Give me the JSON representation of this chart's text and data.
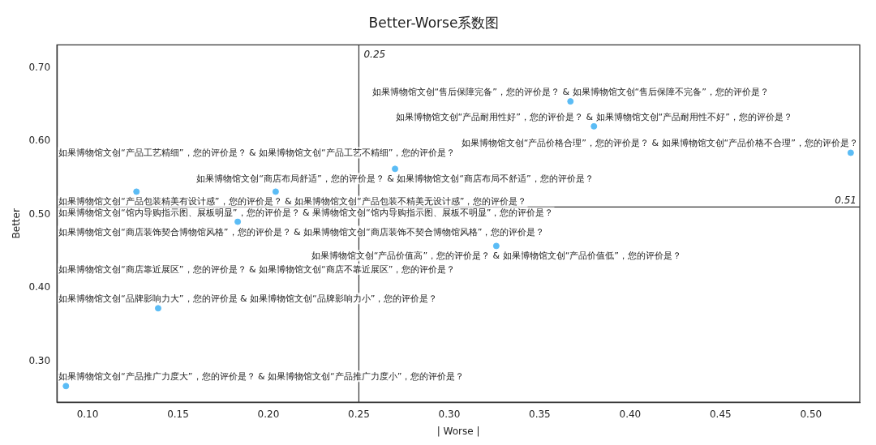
{
  "chart_data": {
    "type": "scatter",
    "title": "Better-Worse系数图",
    "xlabel": "| Worse |",
    "ylabel": "Better",
    "x": [
      0.367,
      0.38,
      0.522,
      0.27,
      0.204,
      0.127,
      0.183,
      0.326,
      0.139,
      0.088
    ],
    "series": [
      {
        "color": "#5bbcf5",
        "values": [
          0.654,
          0.62,
          0.584,
          0.562,
          0.531,
          0.531,
          0.49,
          0.457,
          0.372,
          0.266
        ]
      }
    ],
    "marker": "circle",
    "grid": false,
    "legend": false,
    "xlim": [
      0.083,
      0.527
    ],
    "ylim": [
      0.244,
      0.731
    ],
    "xticks": [
      {
        "value": 0.1,
        "label": "0.10"
      },
      {
        "value": 0.15,
        "label": "0.15"
      },
      {
        "value": 0.2,
        "label": "0.20"
      },
      {
        "value": 0.25,
        "label": "0.25"
      },
      {
        "value": 0.3,
        "label": "0.30"
      },
      {
        "value": 0.35,
        "label": "0.35"
      },
      {
        "value": 0.4,
        "label": "0.40"
      },
      {
        "value": 0.45,
        "label": "0.45"
      },
      {
        "value": 0.5,
        "label": "0.50"
      }
    ],
    "yticks": [
      {
        "value": 0.3,
        "label": "0.30"
      },
      {
        "value": 0.4,
        "label": "0.40"
      },
      {
        "value": 0.5,
        "label": "0.50"
      },
      {
        "value": 0.6,
        "label": "0.60"
      },
      {
        "value": 0.7,
        "label": "0.70"
      }
    ],
    "ref_lines": [
      {
        "axis": "x",
        "value": 0.25,
        "label": "0.25",
        "color": "#333333"
      },
      {
        "axis": "y",
        "value": 0.51,
        "label": "0.51",
        "color": "#333333"
      }
    ],
    "annotations": [
      {
        "text": "如果博物馆文创“售后保障完备”，您的评价是？ & 如果博物馆文创“售后保障不完备”，您的评价是？",
        "x": 0.367,
        "y": 0.654
      },
      {
        "text": "如果博物馆文创“产品耐用性好”，您的评价是？ & 如果博物馆文创“产品耐用性不好”，您的评价是？",
        "x": 0.38,
        "y": 0.62
      },
      {
        "text": "如果博物馆文创“产品价格合理”，您的评价是？ & 如果博物馆文创“产品价格不合理”，您的评价是？",
        "x": 0.522,
        "y": 0.584
      },
      "如果博物馆文创“产品工艺精细”，您的评价是？ & 如果博物馆文创“产品工艺不精细”，您的评价是？",
      {
        "text": "如果博物馆文创“商店布局舒适”，您的评价是？ & 如果博物馆文创“商店布局不舒适”，您的评价是？",
        "x": 0.27,
        "y": 0.562
      },
      {
        "text": "如果博物馆文创“产品包装精美有设计感”，您的评价是？ & 如果博物馆文创“产品包装不精美无设计感”，您的评价是？",
        "x": 0.204,
        "y": 0.531
      },
      {
        "text": "如果博物馆文创“馆内导购指示图、展板明显”，您的评价是？ & 果博物馆文创“馆内导购指示图、展板不明显”，您的评价是？",
        "x": 0.127,
        "y": 0.531
      },
      {
        "text": "如果博物馆文创“商店装饰契合博物馆风格”，您的评价是？ & 如果博物馆文创“商店装饰不契合博物馆风格”，您的评价是？",
        "x": 0.183,
        "y": 0.49
      },
      {
        "text": "如果博物馆文创“产品价值高”，您的评价是？ & 如果博物馆文创“产品价值低”，您的评价是？",
        "x": 0.326,
        "y": 0.457
      },
      "如果博物馆文创“商店靠近展区”，您的评价是？ & 如果博物馆文创“商店不靠近展区”，您的评价是？",
      {
        "text": "如果博物馆文创“品牌影响力大”，您的评价是 & 如果博物馆文创“品牌影响力小”，您的评价是？",
        "x": 0.139,
        "y": 0.372
      },
      {
        "text": "如果博物馆文创“产品推广力度大”，您的评价是？ & 如果博物馆文创“产品推广力度小”，您的评价是？",
        "x": 0.088,
        "y": 0.266
      }
    ]
  }
}
